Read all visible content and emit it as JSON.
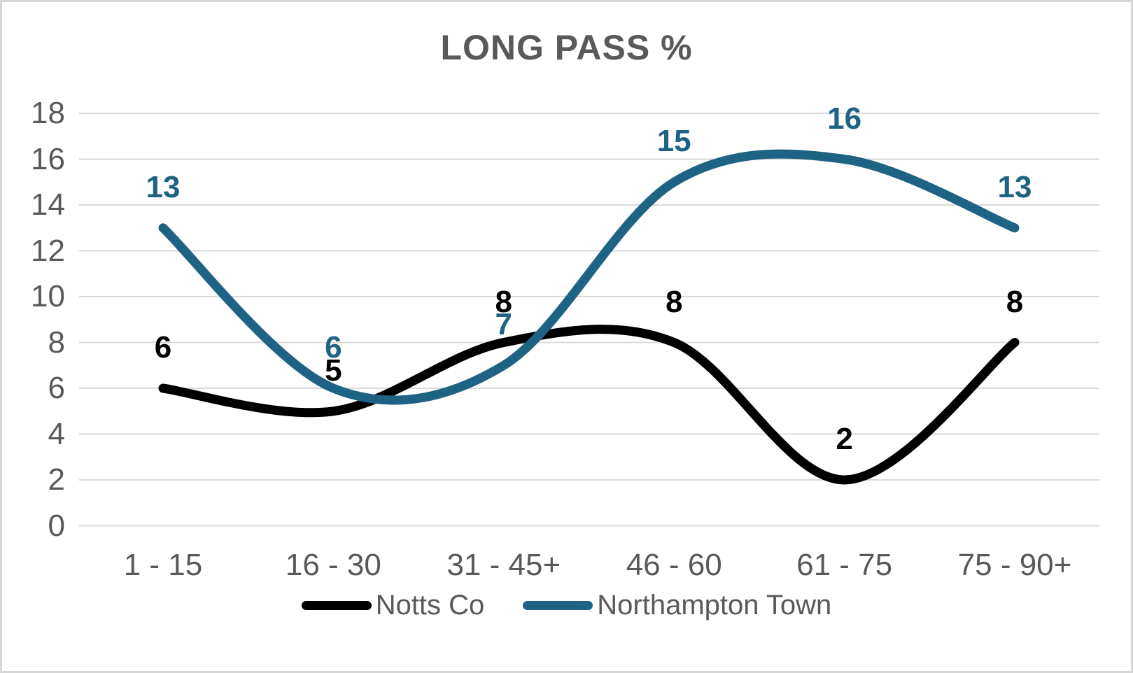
{
  "title": "LONG PASS %",
  "colors": {
    "notts_co": "#000000",
    "northampton": "#1F6384",
    "gridline": "#D9D9D9",
    "text": "#595959",
    "border": "#D6D6D6",
    "background": "#FFFFFF"
  },
  "legend": {
    "items": [
      {
        "label": "Notts Co",
        "color": "#000000"
      },
      {
        "label": "Northampton Town",
        "color": "#1F6384"
      }
    ]
  },
  "chart_data": {
    "type": "line",
    "smooth": true,
    "title": "LONG PASS %",
    "categories": [
      "1 - 15",
      "16 - 30",
      "31 - 45+",
      "46 - 60",
      "61 - 75",
      "75 - 90+"
    ],
    "series": [
      {
        "name": "Notts Co",
        "color": "#000000",
        "values": [
          6,
          5,
          8,
          8,
          2,
          8
        ]
      },
      {
        "name": "Northampton Town",
        "color": "#1F6384",
        "values": [
          13,
          6,
          7,
          15,
          16,
          13
        ]
      }
    ],
    "ylim": [
      0,
      18
    ],
    "yticks": [
      0,
      2,
      4,
      6,
      8,
      10,
      12,
      14,
      16,
      18
    ],
    "xlabel": "",
    "ylabel": "",
    "grid": "horizontal",
    "data_labels": true,
    "legend_position": "bottom"
  }
}
